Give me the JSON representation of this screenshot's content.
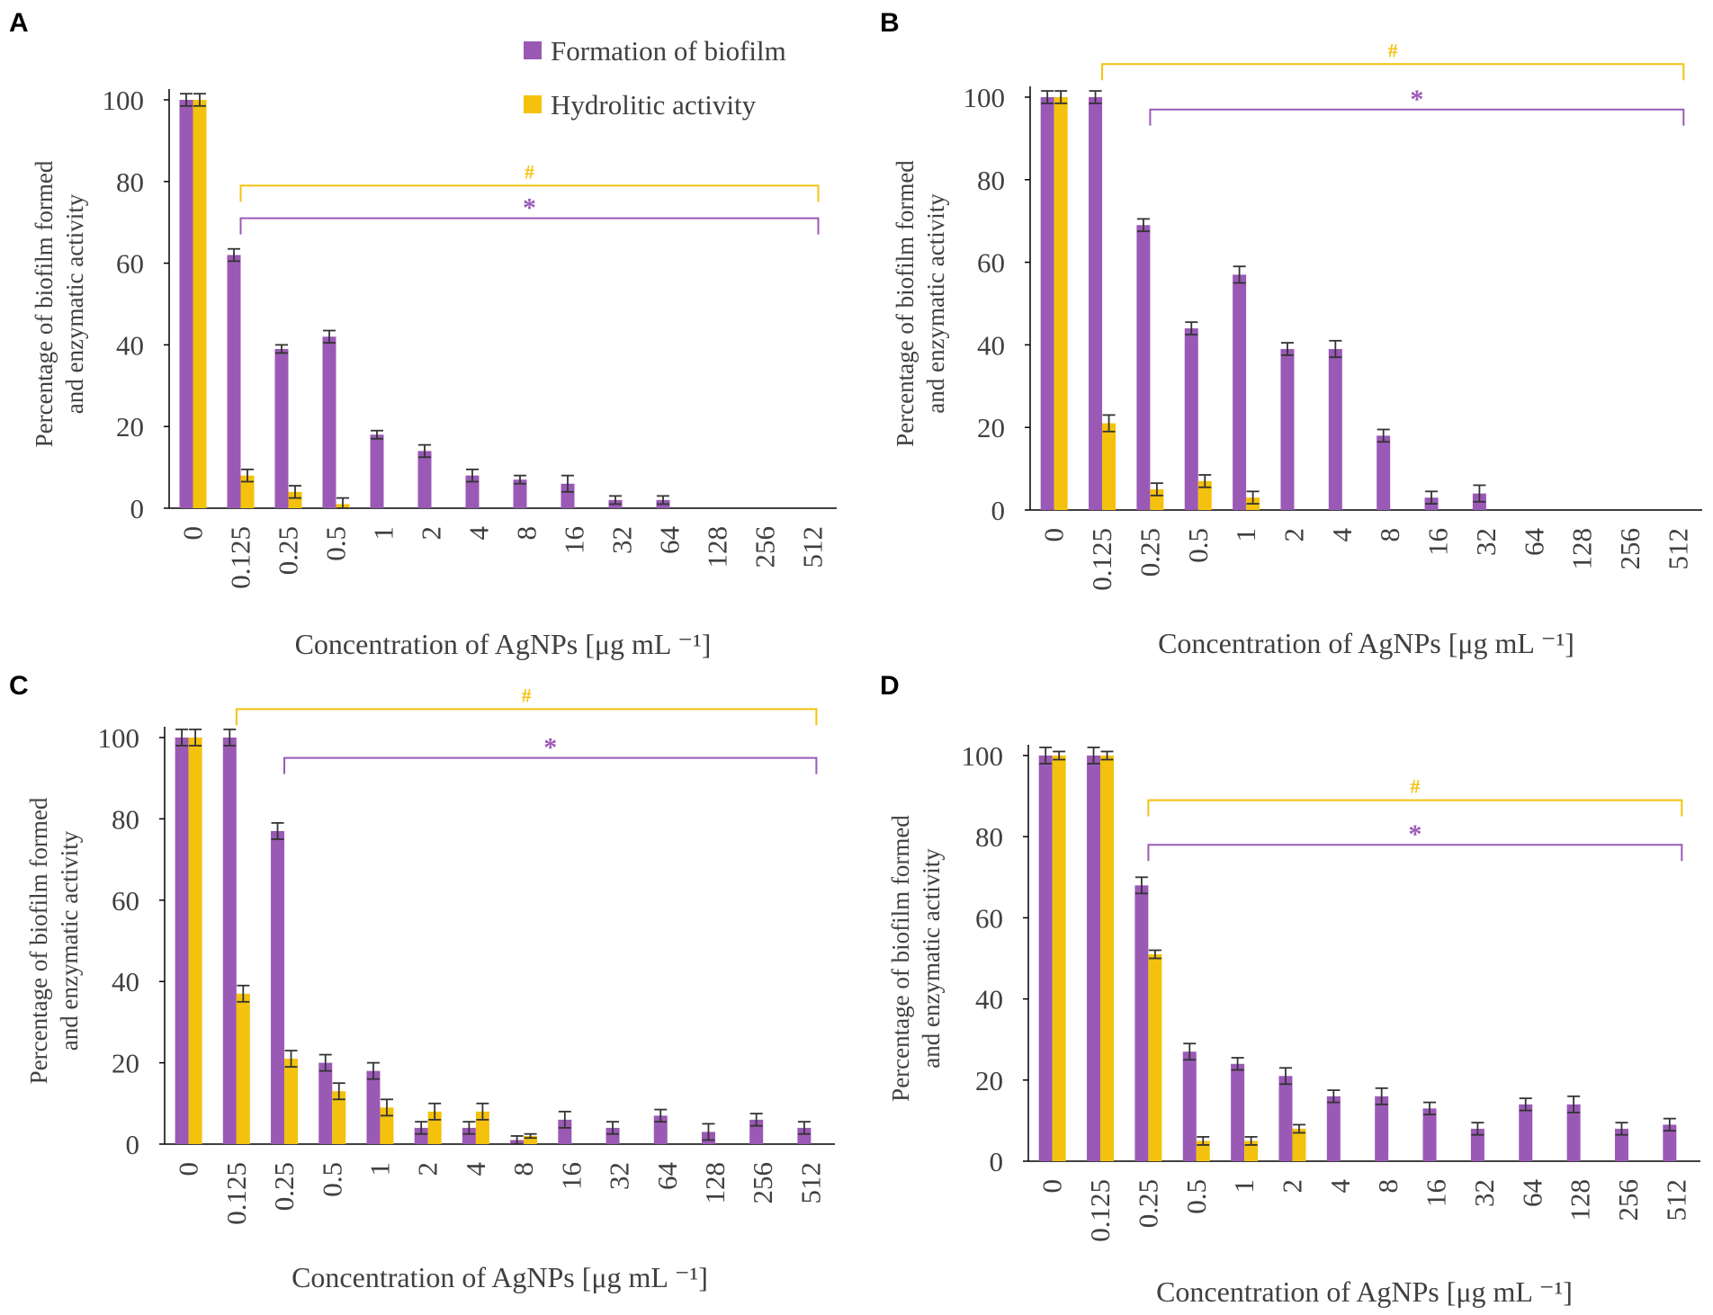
{
  "colors": {
    "biofilm": "#9b59b6",
    "hydrolitic": "#f4c20d",
    "axis": "#000000",
    "errorbar": "#333333",
    "text": "#404040"
  },
  "chart_data": [
    {
      "panel": "A",
      "type": "bar",
      "xlabel": "Concentration of AgNPs [μg mL ⁻¹]",
      "ylabel_line1": "Percentage of biofilm formed",
      "ylabel_line2": "and enzymatic activity",
      "ylim": [
        0,
        100
      ],
      "yticks": [
        "0",
        "20",
        "40",
        "60",
        "80",
        "100"
      ],
      "categories": [
        "0",
        "0.125",
        "0.25",
        "0.5",
        "1",
        "2",
        "4",
        "8",
        "16",
        "32",
        "64",
        "128",
        "256",
        "512"
      ],
      "legend": [
        "Formation of biofilm",
        "Hydrolitic activity"
      ],
      "series": [
        {
          "name": "Formation of biofilm",
          "values": [
            100,
            62,
            39,
            42,
            18,
            14,
            8,
            7,
            6,
            2,
            2,
            null,
            null,
            null
          ],
          "errors": [
            1.5,
            1.5,
            1,
            1.5,
            1,
            1.5,
            1.5,
            1,
            2,
            1,
            1,
            null,
            null,
            null
          ]
        },
        {
          "name": "Hydrolitic activity",
          "values": [
            100,
            8,
            4,
            1,
            null,
            null,
            null,
            null,
            null,
            null,
            null,
            null,
            null,
            null
          ],
          "errors": [
            1.5,
            1.5,
            1.5,
            1.5,
            null,
            null,
            null,
            null,
            null,
            null,
            null,
            null,
            null,
            null
          ]
        }
      ],
      "brackets": [
        {
          "symbol": "#",
          "series": "Hydrolitic activity",
          "from": "0.125",
          "to": "512",
          "level": 79
        },
        {
          "symbol": "*",
          "series": "Formation of biofilm",
          "from": "0.125",
          "to": "512",
          "level": 71
        }
      ]
    },
    {
      "panel": "B",
      "type": "bar",
      "xlabel": "Concentration of AgNPs [μg mL ⁻¹]",
      "ylabel_line1": "Percentage of biofilm formed",
      "ylabel_line2": "and enzymatic activity",
      "ylim": [
        0,
        100
      ],
      "yticks": [
        "0",
        "20",
        "40",
        "60",
        "80",
        "100"
      ],
      "categories": [
        "0",
        "0.125",
        "0.25",
        "0.5",
        "1",
        "2",
        "4",
        "8",
        "16",
        "32",
        "64",
        "128",
        "256",
        "512"
      ],
      "series": [
        {
          "name": "Formation of biofilm",
          "values": [
            100,
            100,
            69,
            44,
            57,
            39,
            39,
            18,
            3,
            4,
            null,
            null,
            null,
            null
          ],
          "errors": [
            1.5,
            1.5,
            1.5,
            1.5,
            2,
            1.5,
            2,
            1.5,
            1.5,
            2,
            null,
            null,
            null,
            null
          ]
        },
        {
          "name": "Hydrolitic activity",
          "values": [
            100,
            21,
            5,
            7,
            3,
            null,
            null,
            null,
            null,
            null,
            null,
            null,
            null,
            null
          ],
          "errors": [
            1.5,
            2,
            1.5,
            1.5,
            1.5,
            null,
            null,
            null,
            null,
            null,
            null,
            null,
            null,
            null
          ]
        }
      ],
      "brackets": [
        {
          "symbol": "#",
          "series": "Hydrolitic activity",
          "from": "0.125",
          "to": "512",
          "level": 108
        },
        {
          "symbol": "*",
          "series": "Formation of biofilm",
          "from": "0.25",
          "to": "512",
          "level": 97
        }
      ]
    },
    {
      "panel": "C",
      "type": "bar",
      "xlabel": "Concentration of AgNPs [μg mL ⁻¹]",
      "ylabel_line1": "Percentage of biofilm formed",
      "ylabel_line2": "and enzymatic activity",
      "ylim": [
        0,
        100
      ],
      "yticks": [
        "0",
        "20",
        "40",
        "60",
        "80",
        "100"
      ],
      "categories": [
        "0",
        "0.125",
        "0.25",
        "0.5",
        "1",
        "2",
        "4",
        "8",
        "16",
        "32",
        "64",
        "128",
        "256",
        "512"
      ],
      "series": [
        {
          "name": "Formation of biofilm",
          "values": [
            100,
            100,
            77,
            20,
            18,
            4,
            4,
            1,
            6,
            4,
            7,
            3,
            6,
            4
          ],
          "errors": [
            2,
            2,
            2,
            2,
            2,
            1.5,
            1.5,
            1,
            2,
            1.5,
            1.5,
            2,
            1.5,
            1.5
          ]
        },
        {
          "name": "Hydrolitic activity",
          "values": [
            100,
            37,
            21,
            13,
            9,
            8,
            8,
            2,
            null,
            null,
            null,
            null,
            null,
            null
          ],
          "errors": [
            2,
            2,
            2,
            2,
            2,
            2,
            2,
            0.5,
            null,
            null,
            null,
            null,
            null,
            null
          ]
        }
      ],
      "brackets": [
        {
          "symbol": "#",
          "series": "Hydrolitic activity",
          "from": "0.125",
          "to": "512",
          "level": 107
        },
        {
          "symbol": "*",
          "series": "Formation of biofilm",
          "from": "0.25",
          "to": "512",
          "level": 95
        }
      ]
    },
    {
      "panel": "D",
      "type": "bar",
      "xlabel": "Concentration of AgNPs [μg mL ⁻¹]",
      "ylabel_line1": "Percentage of biofilm formed",
      "ylabel_line2": "and enzymatic activity",
      "ylim": [
        0,
        100
      ],
      "yticks": [
        "0",
        "20",
        "40",
        "60",
        "80",
        "100"
      ],
      "categories": [
        "0",
        "0.125",
        "0.25",
        "0.5",
        "1",
        "2",
        "4",
        "8",
        "16",
        "32",
        "64",
        "128",
        "256",
        "512"
      ],
      "series": [
        {
          "name": "Formation of biofilm",
          "values": [
            100,
            100,
            68,
            27,
            24,
            21,
            16,
            16,
            13,
            8,
            14,
            14,
            8,
            9
          ],
          "errors": [
            2,
            2,
            2,
            2,
            1.5,
            2,
            1.5,
            2,
            1.5,
            1.5,
            1.5,
            2,
            1.5,
            1.5
          ]
        },
        {
          "name": "Hydrolitic activity",
          "values": [
            100,
            100,
            51,
            5,
            5,
            8,
            null,
            null,
            null,
            null,
            null,
            null,
            null,
            null
          ],
          "errors": [
            1,
            1,
            1,
            1,
            1,
            1,
            null,
            null,
            null,
            null,
            null,
            null,
            null,
            null
          ]
        }
      ],
      "brackets": [
        {
          "symbol": "#",
          "series": "Hydrolitic activity",
          "from": "0.25",
          "to": "512",
          "level": 89
        },
        {
          "symbol": "*",
          "series": "Formation of biofilm",
          "from": "0.25",
          "to": "512",
          "level": 78
        }
      ]
    }
  ]
}
